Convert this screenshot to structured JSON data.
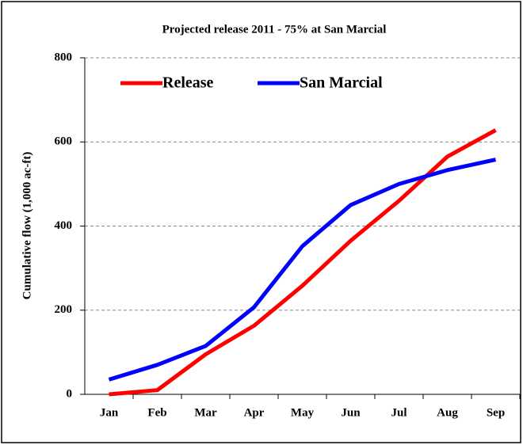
{
  "chart_data": {
    "type": "line",
    "title": "Projected release 2011  - 75% at San Marcial",
    "ylabel": "Cumulative flow (1,000 ac-ft)",
    "categories": [
      "Jan",
      "Feb",
      "Mar",
      "Apr",
      "May",
      "Jun",
      "Jul",
      "Aug",
      "Sep"
    ],
    "series": [
      {
        "name": "Release",
        "color": "#ff0000",
        "values": [
          0,
          10,
          95,
          163,
          258,
          365,
          460,
          565,
          628
        ]
      },
      {
        "name": "San Marcial",
        "color": "#0000ff",
        "values": [
          35,
          70,
          115,
          207,
          352,
          450,
          500,
          533,
          558
        ]
      }
    ],
    "ylim": [
      0,
      800
    ],
    "yticks": [
      0,
      200,
      400,
      600,
      800
    ],
    "grid": true,
    "legend": "upper left"
  }
}
